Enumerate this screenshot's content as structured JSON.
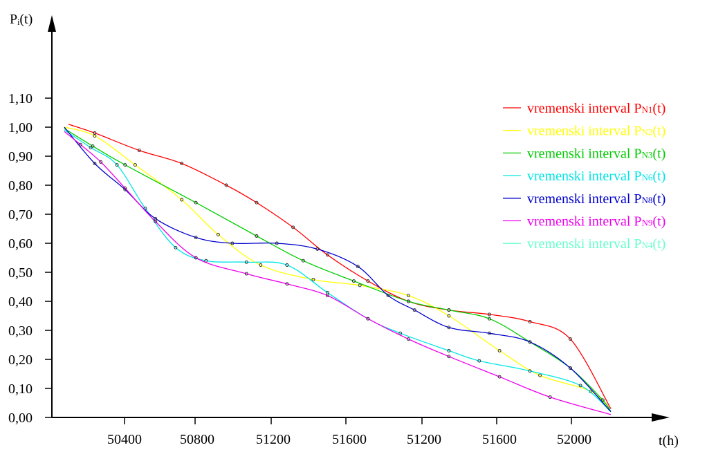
{
  "chart_data": {
    "type": "line",
    "ylabel": "Pᵢ(t)",
    "xlabel": "t(h)",
    "ylim": [
      0,
      1.1
    ],
    "yticks": [
      "0,00",
      "0,10",
      "0,20",
      "0,30",
      "0,40",
      "0,50",
      "0,60",
      "0,70",
      "0,80",
      "0,90",
      "1,00",
      "1,10"
    ],
    "xtick_labels": [
      "50400",
      "50800",
      "51200",
      "51600",
      "51200",
      "51600",
      "52000"
    ],
    "note_x_axis": "sequential time axis, tick labels printed as shown",
    "legend": "right",
    "series": [
      {
        "name": "vremenski interval PN1(t)",
        "legend_label": "vremenski interval P",
        "legend_sub": "N1",
        "legend_suffix": "(t)",
        "color": "#ff0000",
        "points": [
          [
            50120,
            1.01
          ],
          [
            50250,
            0.98
          ],
          [
            50470,
            0.92
          ],
          [
            50680,
            0.875
          ],
          [
            50900,
            0.8
          ],
          [
            51050,
            0.74
          ],
          [
            51230,
            0.655
          ],
          [
            51400,
            0.56
          ],
          [
            51600,
            0.47
          ],
          [
            51800,
            0.4
          ],
          [
            52000,
            0.37
          ],
          [
            52200,
            0.355
          ],
          [
            52400,
            0.33
          ],
          [
            52600,
            0.27
          ],
          [
            52800,
            0.03
          ]
        ]
      },
      {
        "name": "vremenski interval PN2(t)",
        "legend_label": "vremenski interval P",
        "legend_sub": "N2",
        "legend_suffix": "(t)",
        "color": "#ffff00",
        "points": [
          [
            50100,
            1.0
          ],
          [
            50250,
            0.97
          ],
          [
            50450,
            0.87
          ],
          [
            50680,
            0.75
          ],
          [
            50860,
            0.63
          ],
          [
            51070,
            0.525
          ],
          [
            51330,
            0.475
          ],
          [
            51560,
            0.455
          ],
          [
            51800,
            0.42
          ],
          [
            52000,
            0.35
          ],
          [
            52250,
            0.23
          ],
          [
            52450,
            0.145
          ],
          [
            52700,
            0.09
          ],
          [
            52800,
            0.02
          ]
        ]
      },
      {
        "name": "vremenski interval PN3(t)",
        "legend_label": "vremenski interval P",
        "legend_sub": "N3",
        "legend_suffix": "(t)",
        "color": "#00cc00",
        "points": [
          [
            50100,
            0.995
          ],
          [
            50240,
            0.935
          ],
          [
            50400,
            0.87
          ],
          [
            50750,
            0.74
          ],
          [
            51050,
            0.625
          ],
          [
            51280,
            0.54
          ],
          [
            51530,
            0.47
          ],
          [
            51800,
            0.4
          ],
          [
            52000,
            0.37
          ],
          [
            52200,
            0.34
          ],
          [
            52400,
            0.26
          ],
          [
            52600,
            0.17
          ],
          [
            52760,
            0.06
          ],
          [
            52800,
            0.02
          ]
        ]
      },
      {
        "name": "vremenski interval PN6(t)",
        "legend_label": "vremenski interval P",
        "legend_sub": "N6",
        "legend_suffix": "(t)",
        "color": "#00e5e5",
        "points": [
          [
            50100,
            0.99
          ],
          [
            50230,
            0.93
          ],
          [
            50360,
            0.87
          ],
          [
            50500,
            0.72
          ],
          [
            50650,
            0.585
          ],
          [
            50800,
            0.54
          ],
          [
            51000,
            0.535
          ],
          [
            51200,
            0.525
          ],
          [
            51400,
            0.43
          ],
          [
            51600,
            0.34
          ],
          [
            51760,
            0.29
          ],
          [
            52000,
            0.23
          ],
          [
            52150,
            0.195
          ],
          [
            52400,
            0.16
          ],
          [
            52650,
            0.11
          ],
          [
            52800,
            0.02
          ]
        ]
      },
      {
        "name": "vremenski interval PN8(t)",
        "legend_label": "vremenski interval P",
        "legend_sub": "N8",
        "legend_suffix": "(t)",
        "color": "#0000cc",
        "points": [
          [
            50100,
            1.0
          ],
          [
            50250,
            0.875
          ],
          [
            50400,
            0.785
          ],
          [
            50550,
            0.685
          ],
          [
            50750,
            0.62
          ],
          [
            50930,
            0.6
          ],
          [
            51150,
            0.6
          ],
          [
            51350,
            0.58
          ],
          [
            51550,
            0.52
          ],
          [
            51700,
            0.42
          ],
          [
            51830,
            0.37
          ],
          [
            52000,
            0.31
          ],
          [
            52200,
            0.29
          ],
          [
            52400,
            0.26
          ],
          [
            52600,
            0.17
          ],
          [
            52800,
            0.02
          ]
        ]
      },
      {
        "name": "vremenski interval PN9(t)",
        "legend_label": "vremenski interval P",
        "legend_sub": "N9",
        "legend_suffix": "(t)",
        "color": "#ee00ee",
        "points": [
          [
            50100,
            0.985
          ],
          [
            50180,
            0.94
          ],
          [
            50280,
            0.88
          ],
          [
            50400,
            0.79
          ],
          [
            50550,
            0.675
          ],
          [
            50750,
            0.55
          ],
          [
            51000,
            0.495
          ],
          [
            51200,
            0.46
          ],
          [
            51400,
            0.42
          ],
          [
            51600,
            0.34
          ],
          [
            51800,
            0.27
          ],
          [
            52000,
            0.21
          ],
          [
            52250,
            0.14
          ],
          [
            52500,
            0.07
          ],
          [
            52800,
            0.01
          ]
        ]
      },
      {
        "name": "vremenski interval PN4(t)",
        "legend_label": "vremenski interval P",
        "legend_sub": "N4",
        "legend_suffix": "(t)",
        "color": "#66ffcc",
        "points": []
      }
    ]
  }
}
